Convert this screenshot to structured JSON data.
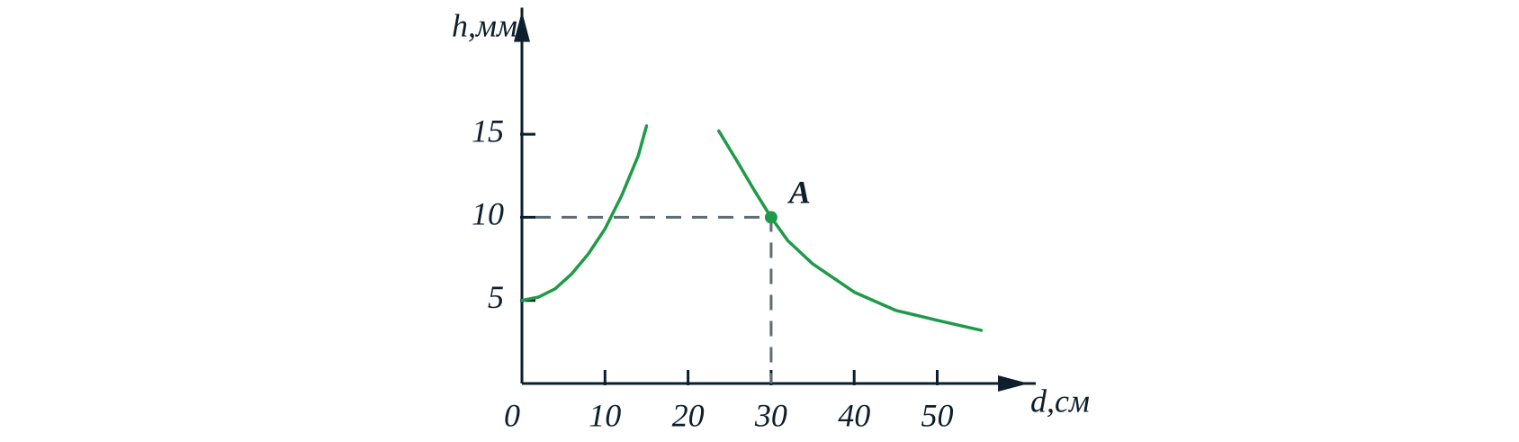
{
  "chart_data": {
    "type": "line",
    "x_label": "d,см",
    "y_label": "h,мм",
    "xlim": [
      0,
      61
    ],
    "ylim": [
      0,
      22.4
    ],
    "xticks": [
      0,
      10,
      20,
      30,
      40,
      50
    ],
    "yticks": [
      5,
      10,
      15
    ],
    "series": [
      {
        "color": "#1f9a48",
        "x": [
          0,
          2,
          4,
          6,
          8,
          10,
          12,
          14,
          15
        ],
        "values": [
          5,
          5.2,
          5.7,
          6.6,
          7.8,
          9.3,
          11.3,
          13.7,
          15.5
        ]
      },
      {
        "color": "#1f9a48",
        "x": [
          23.7,
          26,
          28,
          30,
          32,
          35,
          40,
          45,
          50,
          55.3
        ],
        "values": [
          15.2,
          13.3,
          11.6,
          10,
          8.6,
          7.2,
          5.5,
          4.4,
          3.8,
          3.2
        ]
      }
    ],
    "point": {
      "x": 30,
      "y": 10,
      "label": "A",
      "color": "#1f9a48"
    }
  }
}
